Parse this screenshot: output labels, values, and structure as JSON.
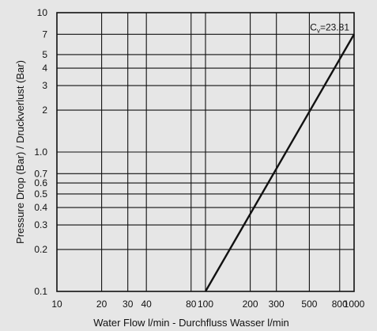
{
  "chart_data": {
    "type": "line",
    "xlabel": "Water Flow l/min - Durchfluss Wasser l/min",
    "ylabel": "Pressure Drop (Bar) / Druckverlust (Bar)",
    "x_scale": "log",
    "y_scale": "log",
    "xlim": [
      10,
      1000
    ],
    "ylim": [
      0.1,
      10
    ],
    "grid": true,
    "x_ticks": [
      10,
      20,
      30,
      40,
      80,
      100,
      200,
      300,
      500,
      800,
      1000
    ],
    "x_tick_labels": [
      "10",
      "20",
      "30",
      "40",
      "80",
      "100",
      "200",
      "300",
      "500",
      "800",
      "1000"
    ],
    "y_ticks": [
      0.1,
      0.2,
      0.3,
      0.4,
      0.5,
      0.6,
      0.7,
      1.0,
      2,
      3,
      4,
      5,
      7,
      10
    ],
    "y_tick_labels": [
      "0.1",
      "0.2",
      "0.3",
      "0.4",
      "0.5",
      "0.6",
      "0.7",
      "1.0",
      "2",
      "3",
      "4",
      "5",
      "7",
      "10"
    ],
    "series": [
      {
        "x": [
          100,
          1000
        ],
        "y": [
          0.1,
          7
        ]
      }
    ],
    "annotations": [
      {
        "main": "C",
        "sub": "v",
        "rest": "=23.81",
        "x": 1000,
        "y": 7
      }
    ],
    "colors": {
      "background": "#e6e6e6",
      "grid": "#111111",
      "line": "#111111"
    }
  }
}
